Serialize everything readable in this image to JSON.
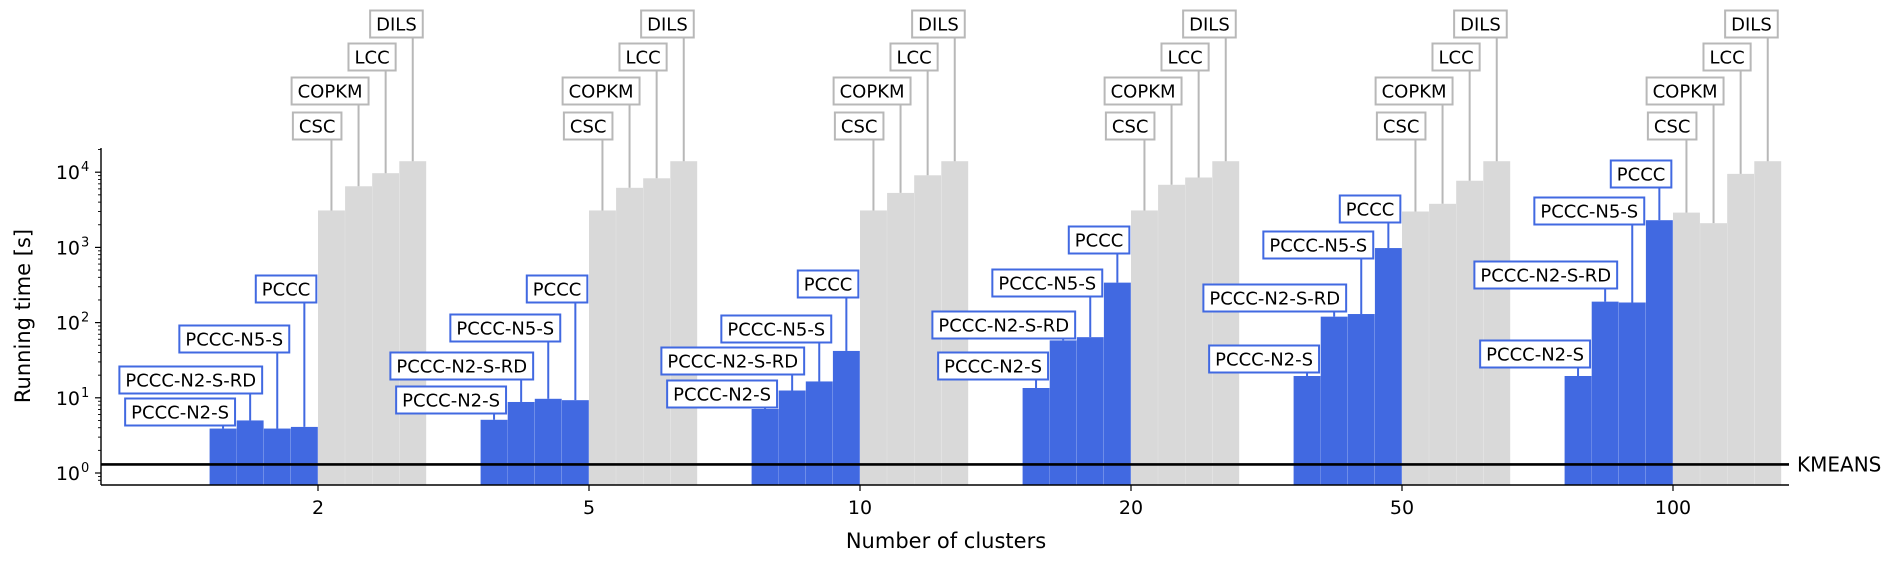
{
  "chart_data": {
    "type": "bar",
    "xlabel": "Number of clusters",
    "ylabel": "Running time [s]",
    "yscale": "log",
    "ylim": [
      0.75,
      25000
    ],
    "y_ticks": [
      {
        "value": 1,
        "base": "10",
        "exp": "0"
      },
      {
        "value": 10,
        "base": "10",
        "exp": "1"
      },
      {
        "value": 100,
        "base": "10",
        "exp": "2"
      },
      {
        "value": 1000,
        "base": "10",
        "exp": "3"
      },
      {
        "value": 10000,
        "base": "10",
        "exp": "4"
      }
    ],
    "categories": [
      "2",
      "5",
      "10",
      "20",
      "50",
      "100"
    ],
    "series": [
      {
        "name": "PCCC-N2-S",
        "group": "proposed",
        "values": [
          3.9,
          5.1,
          7.1,
          13.5,
          19.5,
          19.5
        ]
      },
      {
        "name": "PCCC-N2-S-RD",
        "group": "proposed",
        "values": [
          5.0,
          8.8,
          12.5,
          58,
          120,
          190
        ]
      },
      {
        "name": "PCCC-N5-S",
        "group": "proposed",
        "values": [
          3.9,
          9.7,
          16.5,
          64,
          130,
          185
        ]
      },
      {
        "name": "PCCC",
        "group": "proposed",
        "values": [
          4.1,
          9.3,
          42,
          340,
          980,
          2300
        ]
      },
      {
        "name": "CSC",
        "group": "baseline",
        "values": [
          3100,
          3100,
          3100,
          3100,
          3000,
          2900
        ]
      },
      {
        "name": "COPKM",
        "group": "baseline",
        "values": [
          6500,
          6200,
          5300,
          6800,
          3800,
          2100
        ]
      },
      {
        "name": "LCC",
        "group": "baseline",
        "values": [
          9700,
          8300,
          9100,
          8500,
          7700,
          9500
        ]
      },
      {
        "name": "DILS",
        "group": "baseline",
        "values": [
          14000,
          14000,
          14000,
          14000,
          14000,
          14000
        ]
      }
    ],
    "reference_line": {
      "name": "KMEANS",
      "value": 1.3
    },
    "colors": {
      "proposed": "#4169e1",
      "baseline": "#d9d9d9",
      "reference": "#000000",
      "baseline_leader": "#b8b8b8"
    }
  }
}
